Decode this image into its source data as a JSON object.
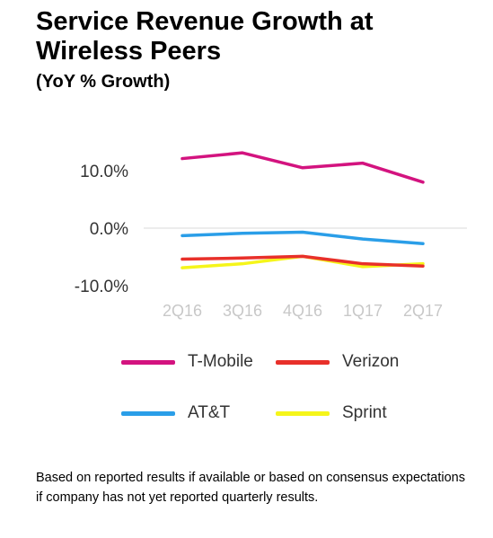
{
  "title": "Service Revenue Growth at Wireless Peers",
  "subtitle": "(YoY % Growth)",
  "footnote": "Based on reported results if available or based on consensus expectations if company has not yet reported quarterly results.",
  "chart_data": {
    "type": "line",
    "categories": [
      "2Q16",
      "3Q16",
      "4Q16",
      "1Q17",
      "2Q17"
    ],
    "y_ticks": [
      10.0,
      0.0,
      -10.0
    ],
    "y_tick_labels": [
      "10.0%",
      "0.0%",
      "-10.0%"
    ],
    "ylim": [
      -12,
      15
    ],
    "grid": "zero-line only",
    "legend_position": "bottom",
    "series": [
      {
        "name": "T-Mobile",
        "color": "#d3137f",
        "values": [
          12.1,
          13.1,
          10.5,
          11.3,
          8.0
        ]
      },
      {
        "name": "AT&T",
        "color": "#2a9ee8",
        "values": [
          -1.3,
          -0.9,
          -0.7,
          -1.9,
          -2.7
        ]
      },
      {
        "name": "Verizon",
        "color": "#e8302a",
        "values": [
          -5.4,
          -5.2,
          -4.9,
          -6.2,
          -6.6
        ]
      },
      {
        "name": "Sprint",
        "color": "#f5f51a",
        "values": [
          -6.9,
          -6.2,
          -4.9,
          -6.7,
          -6.2
        ]
      }
    ]
  }
}
